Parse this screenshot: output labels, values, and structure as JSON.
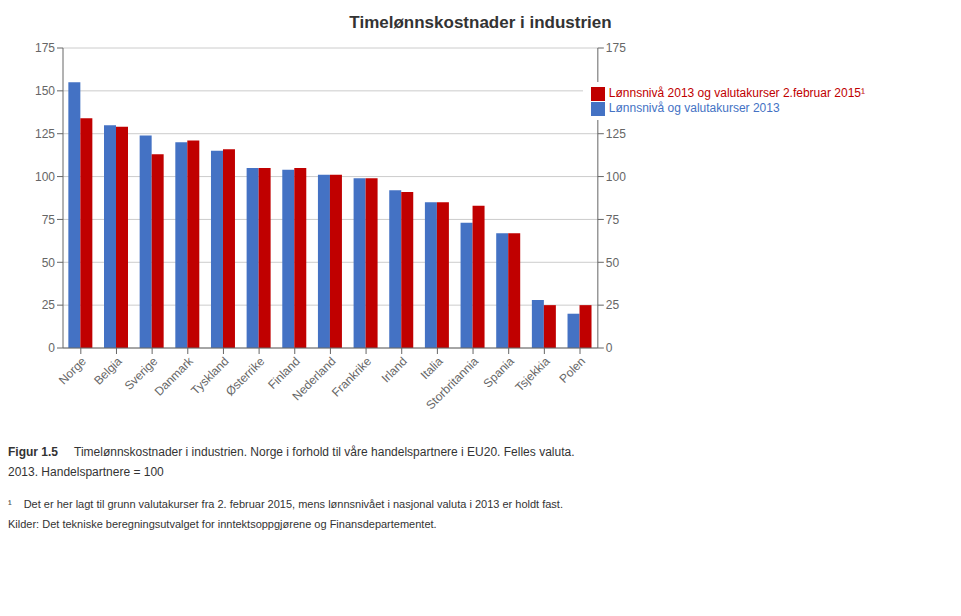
{
  "chart_data": {
    "type": "bar",
    "title": "Timelønnskostnader i industrien",
    "categories": [
      "Norge",
      "Belgia",
      "Sverige",
      "Danmark",
      "Tyskland",
      "Østerrike",
      "Finland",
      "Nederland",
      "Frankrike",
      "Irland",
      "Italia",
      "Storbritannia",
      "Spania",
      "Tsjekkia",
      "Polen"
    ],
    "series": [
      {
        "name": "Lønnsnivå og valutakurser 2013",
        "color": "#4472C4",
        "values": [
          155,
          130,
          124,
          120,
          115,
          105,
          104,
          101,
          99,
          92,
          85,
          73,
          67,
          28,
          20
        ]
      },
      {
        "name": "Lønnsnivå 2013 og valutakurser 2.februar 2015¹",
        "color": "#C00000",
        "axis": "y2",
        "values": [
          134,
          129,
          113,
          121,
          116,
          105,
          105,
          101,
          99,
          91,
          85,
          83,
          67,
          25,
          25
        ]
      }
    ],
    "ylim": [
      0,
      175
    ],
    "yticks": [
      0,
      25,
      50,
      75,
      100,
      125,
      150,
      175
    ],
    "y2lim": [
      0,
      175
    ],
    "y2ticks": [
      0,
      25,
      50,
      75,
      100,
      125,
      150,
      175
    ],
    "grid": true,
    "legend": "upper right",
    "annotations": [
      "Figur 1.5",
      "Timelønnskostnader i industrien. Norge i forhold til våre handelspartnere i EU20. Felles valuta.",
      "2013. Handelspartnere = 100",
      "¹",
      "Det er her lagt til grunn valutakurser fra 2. februar 2015, mens lønnsnivået i nasjonal valuta i 2013 er holdt fast.",
      "Kilder: Det tekniske beregningsutvalget for inntektsoppgjørene og Finansdepartementet."
    ]
  }
}
